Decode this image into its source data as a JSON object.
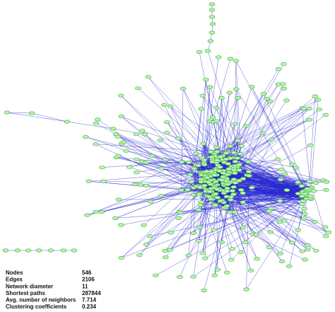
{
  "stats": {
    "rows": [
      {
        "label": "Nodes",
        "value": 546
      },
      {
        "label": "Edges",
        "value": 2106
      },
      {
        "label": "Network diameter",
        "value": 11
      },
      {
        "label": "Shortest paths",
        "value": 287844
      },
      {
        "label": "Avg. number of neighbors",
        "value": 7.714
      },
      {
        "label": "Clustering coefficients",
        "value": 0.234
      }
    ]
  }
}
